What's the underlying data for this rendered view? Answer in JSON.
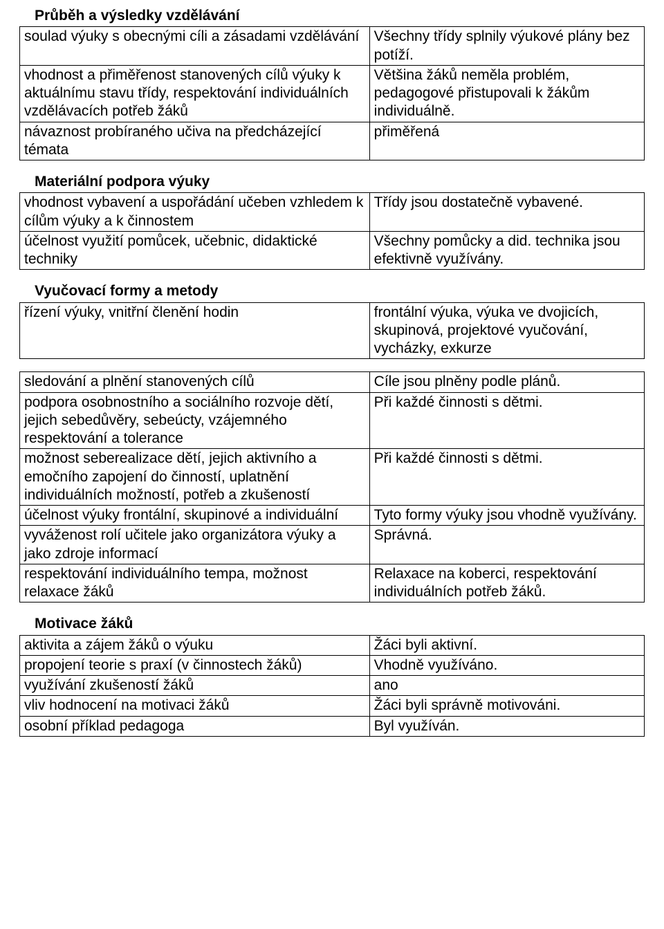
{
  "sections": [
    {
      "header": "Průběh a výsledky vzdělávání",
      "rows": [
        {
          "left": "soulad výuky s obecnými cíli a zásadami vzdělávání",
          "right": "Všechny třídy splnily výukové plány bez potíží."
        },
        {
          "left": "vhodnost a přiměřenost stanovených cílů výuky k aktuálnímu stavu třídy, respektování individuálních vzdělávacích potřeb žáků",
          "right": "Většina žáků neměla problém, pedagogové přistupovali k žákům individuálně."
        },
        {
          "left": "návaznost probíraného učiva na předcházející témata",
          "right": "přiměřená"
        }
      ]
    },
    {
      "header": "Materiální podpora výuky",
      "rows": [
        {
          "left": "vhodnost vybavení a uspořádání učeben vzhledem k cílům výuky a k činnostem",
          "right": "Třídy jsou dostatečně vybavené."
        },
        {
          "left": "účelnost využití pomůcek, učebnic, didaktické techniky",
          "right": "Všechny pomůcky a did. technika jsou efektivně využívány."
        }
      ]
    },
    {
      "header": "Vyučovací formy a metody",
      "rows": [
        {
          "left": "řízení výuky, vnitřní členění hodin",
          "right": "frontální výuka, výuka ve dvojicích, skupinová, projektové vyučování, vycházky, exkurze"
        }
      ]
    },
    {
      "header": "",
      "rows": [
        {
          "left": "sledování a plnění stanovených cílů",
          "right": "Cíle jsou plněny podle plánů."
        },
        {
          "left": "podpora osobnostního a sociálního rozvoje dětí, jejich sebedůvěry, sebeúcty, vzájemného respektování a tolerance",
          "right": "Při každé činnosti s dětmi."
        },
        {
          "left": "možnost seberealizace dětí, jejich aktivního a emočního zapojení do činností, uplatnění individuálních možností, potřeb a zkušeností",
          "right": "Při každé činnosti s dětmi."
        },
        {
          "left": "účelnost výuky frontální, skupinové a individuální",
          "right": "Tyto formy výuky jsou vhodně využívány."
        },
        {
          "left": "vyváženost rolí učitele jako organizátora výuky a jako zdroje informací",
          "right": "Správná."
        },
        {
          "left": "respektování individuálního tempa, možnost relaxace žáků",
          "right": "Relaxace na koberci, respektování individuálních potřeb žáků."
        }
      ]
    },
    {
      "header": "Motivace žáků",
      "rows": [
        {
          "left": "aktivita a zájem žáků o výuku",
          "right": "Žáci byli aktivní."
        },
        {
          "left": "propojení teorie s praxí (v činnostech žáků)",
          "right": "Vhodně využíváno."
        },
        {
          "left": "využívání zkušeností žáků",
          "right": "ano"
        },
        {
          "left": "vliv hodnocení na motivaci žáků",
          "right": "Žáci byli správně motivováni."
        },
        {
          "left": "osobní příklad pedagoga",
          "right": "Byl využíván."
        }
      ]
    }
  ],
  "style": {
    "page_background": "#ffffff",
    "text_color": "#000000",
    "border_color": "#000000",
    "font_family": "Arial",
    "font_size_pt": 16,
    "header_font_weight": "bold",
    "col_left_width_pct": 56,
    "col_right_width_pct": 44
  }
}
